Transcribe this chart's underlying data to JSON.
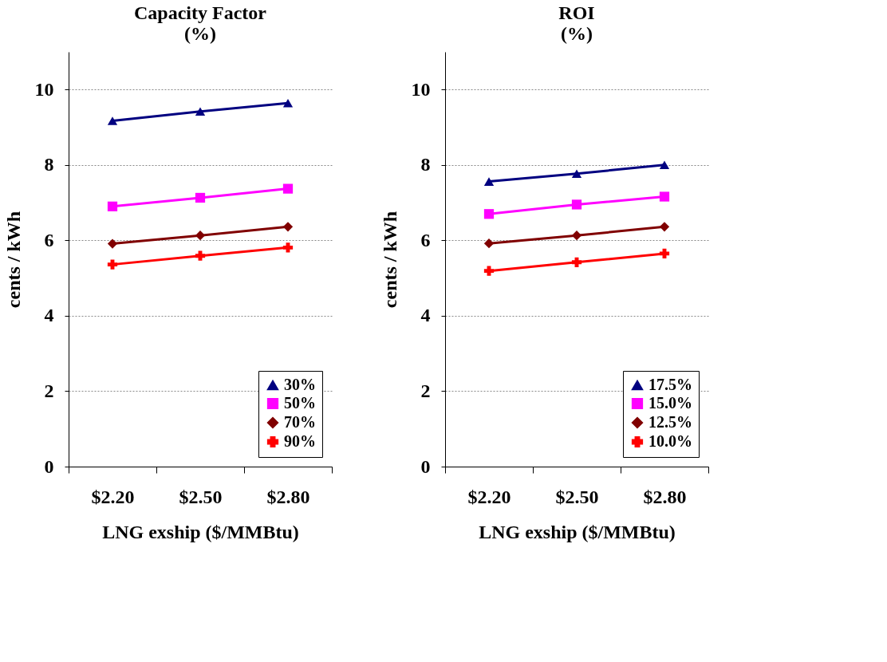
{
  "chart_data": [
    {
      "type": "line",
      "title": [
        "Capacity Factor",
        "(%)"
      ],
      "xlabel": "LNG exship  ($/MMBtu)",
      "ylabel": "cents / kWh",
      "categories": [
        "$2.20",
        "$2.50",
        "$2.80"
      ],
      "ylim": [
        0,
        11
      ],
      "yticks": [
        0,
        2,
        4,
        6,
        8,
        10
      ],
      "grid": "y",
      "legend": "bottom right",
      "series": [
        {
          "name": "30%",
          "color": "#000080",
          "marker": "triangle",
          "values": [
            9.17,
            9.42,
            9.64
          ]
        },
        {
          "name": "50%",
          "color": "#ff00ff",
          "marker": "square",
          "values": [
            6.9,
            7.13,
            7.37
          ]
        },
        {
          "name": "70%",
          "color": "#800000",
          "marker": "diamond",
          "values": [
            5.91,
            6.13,
            6.36
          ]
        },
        {
          "name": "90%",
          "color": "#ff0000",
          "marker": "cross",
          "values": [
            5.36,
            5.59,
            5.81
          ]
        }
      ]
    },
    {
      "type": "line",
      "title": [
        "ROI",
        "(%)"
      ],
      "xlabel": "LNG exship  ($/MMBtu)",
      "ylabel": "cents / kWh",
      "categories": [
        "$2.20",
        "$2.50",
        "$2.80"
      ],
      "ylim": [
        0,
        11
      ],
      "yticks": [
        0,
        2,
        4,
        6,
        8,
        10
      ],
      "grid": "y",
      "legend": "bottom right",
      "series": [
        {
          "name": "17.5%",
          "color": "#000080",
          "marker": "triangle",
          "values": [
            7.56,
            7.77,
            8.0
          ]
        },
        {
          "name": "15.0%",
          "color": "#ff00ff",
          "marker": "square",
          "values": [
            6.7,
            6.95,
            7.16
          ]
        },
        {
          "name": "12.5%",
          "color": "#800000",
          "marker": "diamond",
          "values": [
            5.92,
            6.13,
            6.36
          ]
        },
        {
          "name": "10.0%",
          "color": "#ff0000",
          "marker": "cross",
          "values": [
            5.19,
            5.42,
            5.65
          ]
        }
      ]
    }
  ]
}
